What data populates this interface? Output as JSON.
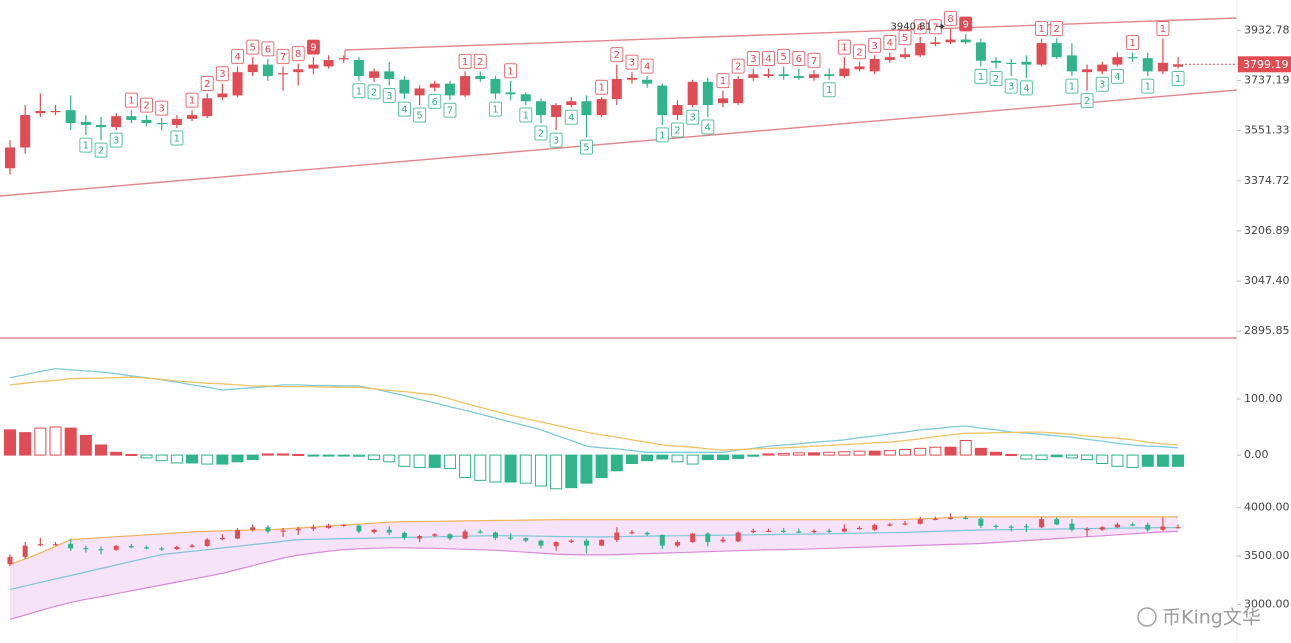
{
  "chart_data": [
    {
      "type": "candlestick",
      "log_scale": true,
      "up_color": "#e04b54",
      "down_color": "#2fb48c",
      "ylim": [
        2876,
        4056
      ],
      "yticks": [
        3932.78,
        3737.19,
        3551.33,
        3374.72,
        3206.89,
        {
          "value": 3047.4,
          "label": "3047.40"
        },
        2895.85
      ],
      "last_price": 3799.19,
      "open": [
        3418,
        3491,
        3615,
        3619,
        3626,
        3583,
        3572,
        3564,
        3604,
        3590,
        3579,
        3572,
        3594,
        3604,
        3674,
        3681,
        3769,
        3798,
        3761,
        3769,
        3783,
        3791,
        3820,
        3816,
        3747,
        3772,
        3740,
        3681,
        3710,
        3725,
        3681,
        3754,
        3743,
        3692,
        3685,
        3659,
        3601,
        3645,
        3659,
        3608,
        3667,
        3740,
        3740,
        3718,
        3608,
        3645,
        3732,
        3652,
        3652,
        3747,
        3754,
        3761,
        3754,
        3747,
        3761,
        3754,
        3780,
        3772,
        3816,
        3827,
        3834,
        3878,
        3885,
        3896,
        3885,
        3813,
        3805,
        3809,
        3798,
        3882,
        3834,
        3769,
        3772,
        3798,
        3827,
        3823,
        3772,
        3790
      ],
      "high": [
        3517,
        3645,
        3688,
        3645,
        3681,
        3608,
        3601,
        3615,
        3626,
        3608,
        3597,
        3608,
        3626,
        3688,
        3725,
        3791,
        3827,
        3820,
        3791,
        3802,
        3827,
        3834,
        3834,
        3827,
        3783,
        3809,
        3754,
        3718,
        3736,
        3736,
        3772,
        3772,
        3754,
        3736,
        3692,
        3670,
        3652,
        3674,
        3681,
        3674,
        3798,
        3769,
        3754,
        3725,
        3663,
        3740,
        3747,
        3699,
        3754,
        3783,
        3783,
        3791,
        3783,
        3776,
        3783,
        3827,
        3809,
        3834,
        3845,
        3864,
        3907,
        3907,
        3940.81,
        3918,
        3900,
        3827,
        3820,
        3834,
        3900,
        3900,
        3882,
        3798,
        3809,
        3845,
        3845,
        3845,
        3900,
        3827
      ],
      "low": [
        3396,
        3469,
        3601,
        3608,
        3553,
        3535,
        3517,
        3553,
        3579,
        3568,
        3553,
        3561,
        3586,
        3597,
        3663,
        3674,
        3754,
        3736,
        3699,
        3718,
        3761,
        3783,
        3805,
        3736,
        3732,
        3718,
        3667,
        3645,
        3696,
        3663,
        3674,
        3732,
        3667,
        3663,
        3645,
        3579,
        3553,
        3637,
        3528,
        3601,
        3645,
        3725,
        3710,
        3572,
        3590,
        3637,
        3601,
        3637,
        3645,
        3736,
        3747,
        3740,
        3740,
        3736,
        3740,
        3747,
        3772,
        3761,
        3805,
        3820,
        3827,
        3871,
        3878,
        3878,
        3791,
        3783,
        3754,
        3747,
        3791,
        3820,
        3754,
        3699,
        3761,
        3791,
        3809,
        3754,
        3761,
        3783
      ],
      "close": [
        3491,
        3608,
        3623,
        3623,
        3579,
        3572,
        3564,
        3604,
        3590,
        3579,
        3575,
        3594,
        3608,
        3670,
        3688,
        3769,
        3798,
        3754,
        3765,
        3780,
        3798,
        3816,
        3823,
        3754,
        3772,
        3743,
        3688,
        3707,
        3725,
        3681,
        3754,
        3743,
        3688,
        3685,
        3659,
        3608,
        3645,
        3659,
        3608,
        3667,
        3743,
        3747,
        3725,
        3608,
        3645,
        3732,
        3645,
        3670,
        3743,
        3761,
        3761,
        3754,
        3747,
        3761,
        3754,
        3783,
        3791,
        3820,
        3827,
        3838,
        3882,
        3885,
        3896,
        3885,
        3813,
        3805,
        3802,
        3798,
        3882,
        3827,
        3772,
        3780,
        3798,
        3827,
        3823,
        3772,
        3805,
        3799.19
      ],
      "td_sell": [
        null,
        null,
        null,
        null,
        null,
        null,
        null,
        null,
        1,
        2,
        3,
        null,
        1,
        2,
        3,
        4,
        5,
        6,
        7,
        8,
        9,
        null,
        null,
        null,
        null,
        null,
        null,
        null,
        null,
        null,
        1,
        2,
        null,
        1,
        null,
        null,
        null,
        null,
        null,
        1,
        2,
        3,
        4,
        null,
        null,
        null,
        null,
        1,
        2,
        3,
        4,
        5,
        6,
        7,
        null,
        1,
        2,
        3,
        4,
        5,
        6,
        7,
        8,
        9,
        null,
        null,
        null,
        null,
        1,
        2,
        null,
        null,
        null,
        null,
        1,
        null,
        1,
        null
      ],
      "td_buy": [
        null,
        null,
        null,
        null,
        null,
        1,
        2,
        3,
        null,
        null,
        null,
        1,
        null,
        null,
        null,
        null,
        null,
        null,
        null,
        null,
        null,
        null,
        null,
        1,
        2,
        3,
        4,
        5,
        6,
        7,
        null,
        null,
        1,
        null,
        1,
        2,
        3,
        4,
        5,
        null,
        null,
        null,
        null,
        1,
        2,
        3,
        4,
        null,
        null,
        null,
        null,
        null,
        null,
        null,
        1,
        null,
        null,
        null,
        null,
        null,
        null,
        null,
        null,
        null,
        1,
        2,
        3,
        4,
        null,
        null,
        1,
        2,
        3,
        4,
        null,
        1,
        null,
        1
      ]
    },
    {
      "type": "macd",
      "up_color": "#e04b54",
      "down_color": "#2fb48c",
      "ylim": [
        -80,
        205
      ],
      "yticks": [
        {
          "value": 100,
          "label": "100.00"
        },
        {
          "value": 0,
          "label": "0.00"
        }
      ],
      "histogram": [
        45,
        40,
        48,
        50,
        48,
        35,
        18,
        5,
        1,
        -5,
        -10,
        -14,
        -14,
        -16,
        -16,
        -12,
        -8,
        2,
        2,
        1,
        -1,
        -1,
        -1,
        -2,
        -8,
        -12,
        -20,
        -22,
        -22,
        -24,
        -40,
        -45,
        -48,
        -48,
        -50,
        -55,
        -60,
        -58,
        -50,
        -40,
        -28,
        -15,
        -10,
        -7,
        -12,
        -16,
        -8,
        -8,
        -6,
        -2,
        2,
        3,
        4,
        4,
        5,
        6,
        7,
        7,
        8,
        10,
        12,
        14,
        14,
        26,
        12,
        5,
        1,
        -7,
        -8,
        -3,
        -5,
        -8,
        -15,
        -20,
        -22,
        -20,
        -20,
        -20
      ],
      "series": [
        {
          "color": "#7fcbd8",
          "values": [
            138,
            143,
            149,
            154,
            152,
            150,
            148,
            145,
            141,
            138,
            134,
            130,
            125,
            121,
            116,
            118,
            120,
            122,
            125,
            125,
            124,
            124,
            123,
            123,
            118,
            112,
            106,
            99,
            93,
            86,
            80,
            73,
            66,
            59,
            52,
            45,
            35,
            26,
            16,
            13,
            11,
            8,
            5,
            5,
            5,
            5,
            5,
            5,
            9,
            12,
            16,
            18,
            20,
            23,
            25,
            27,
            31,
            34,
            38,
            41,
            45,
            47,
            50,
            52,
            48,
            45,
            41,
            39,
            37,
            34,
            32,
            28,
            25,
            21,
            18,
            16,
            15,
            13
          ]
        },
        {
          "color": "#efc464",
          "values": [
            125,
            128,
            131,
            133,
            136,
            137,
            137,
            138,
            139,
            137,
            135,
            132,
            130,
            128,
            127,
            125,
            123,
            123,
            122,
            122,
            122,
            121,
            121,
            121,
            118,
            115,
            113,
            110,
            107,
            100,
            92,
            85,
            78,
            71,
            65,
            59,
            53,
            47,
            41,
            36,
            32,
            27,
            23,
            18,
            16,
            14,
            11,
            9,
            10,
            11,
            12,
            13,
            14,
            16,
            17,
            19,
            20,
            22,
            23,
            26,
            29,
            33,
            36,
            39,
            39,
            40,
            40,
            41,
            41,
            39,
            37,
            34,
            32,
            30,
            27,
            23,
            20,
            18
          ]
        }
      ]
    },
    {
      "type": "bands",
      "fill": "#f4dcf6",
      "ylim": [
        2600,
        4080
      ],
      "yticks": [
        {
          "value": 4000,
          "label": "4000.00"
        },
        {
          "value": 3500,
          "label": "3500.00"
        },
        {
          "value": 3000,
          "label": "3000.00"
        }
      ],
      "series": [
        {
          "color": "#f0b25a",
          "values": [
            3412,
            3470,
            3530,
            3600,
            3670,
            3680,
            3690,
            3700,
            3710,
            3720,
            3730,
            3740,
            3750,
            3755,
            3760,
            3765,
            3770,
            3773,
            3780,
            3790,
            3800,
            3810,
            3820,
            3830,
            3840,
            3850,
            3856,
            3858,
            3860,
            3862,
            3864,
            3866,
            3868,
            3870,
            3872,
            3874,
            3876,
            3876,
            3876,
            3876,
            3876,
            3876,
            3876,
            3876,
            3876,
            3876,
            3876,
            3876,
            3876,
            3876,
            3876,
            3876,
            3876,
            3876,
            3876,
            3876,
            3876,
            3876,
            3876,
            3880,
            3885,
            3890,
            3900,
            3905,
            3905,
            3905,
            3905,
            3905,
            3905,
            3905,
            3905,
            3905,
            3905,
            3905,
            3905,
            3905,
            3905,
            3905
          ]
        },
        {
          "color": "#7cc6d6",
          "values": [
            3155,
            3191,
            3227,
            3263,
            3299,
            3335,
            3371,
            3407,
            3443,
            3479,
            3515,
            3532,
            3549,
            3566,
            3584,
            3601,
            3618,
            3635,
            3653,
            3670,
            3673,
            3676,
            3680,
            3683,
            3686,
            3689,
            3692,
            3695,
            3699,
            3702,
            3705,
            3708,
            3711,
            3710,
            3708,
            3705,
            3702,
            3700,
            3698,
            3698,
            3700,
            3703,
            3706,
            3708,
            3710,
            3712,
            3714,
            3716,
            3718,
            3720,
            3722,
            3724,
            3726,
            3728,
            3730,
            3733,
            3736,
            3739,
            3742,
            3745,
            3750,
            3755,
            3760,
            3765,
            3770,
            3772,
            3774,
            3776,
            3778,
            3780,
            3782,
            3784,
            3786,
            3788,
            3790,
            3792,
            3794,
            3794
          ]
        },
        {
          "color": "#d98ad6",
          "values": [
            2845,
            2890,
            2935,
            2980,
            3020,
            3052,
            3080,
            3110,
            3140,
            3170,
            3200,
            3230,
            3260,
            3290,
            3320,
            3361,
            3400,
            3440,
            3480,
            3510,
            3530,
            3550,
            3567,
            3575,
            3580,
            3585,
            3585,
            3582,
            3580,
            3575,
            3570,
            3565,
            3560,
            3550,
            3540,
            3530,
            3520,
            3515,
            3512,
            3512,
            3515,
            3520,
            3525,
            3530,
            3535,
            3540,
            3545,
            3550,
            3555,
            3560,
            3565,
            3567,
            3570,
            3575,
            3580,
            3585,
            3590,
            3595,
            3600,
            3605,
            3610,
            3615,
            3620,
            3625,
            3630,
            3640,
            3650,
            3660,
            3670,
            3680,
            3690,
            3700,
            3710,
            3720,
            3730,
            3740,
            3750,
            3755
          ]
        }
      ]
    }
  ],
  "watermark": "币King文华"
}
